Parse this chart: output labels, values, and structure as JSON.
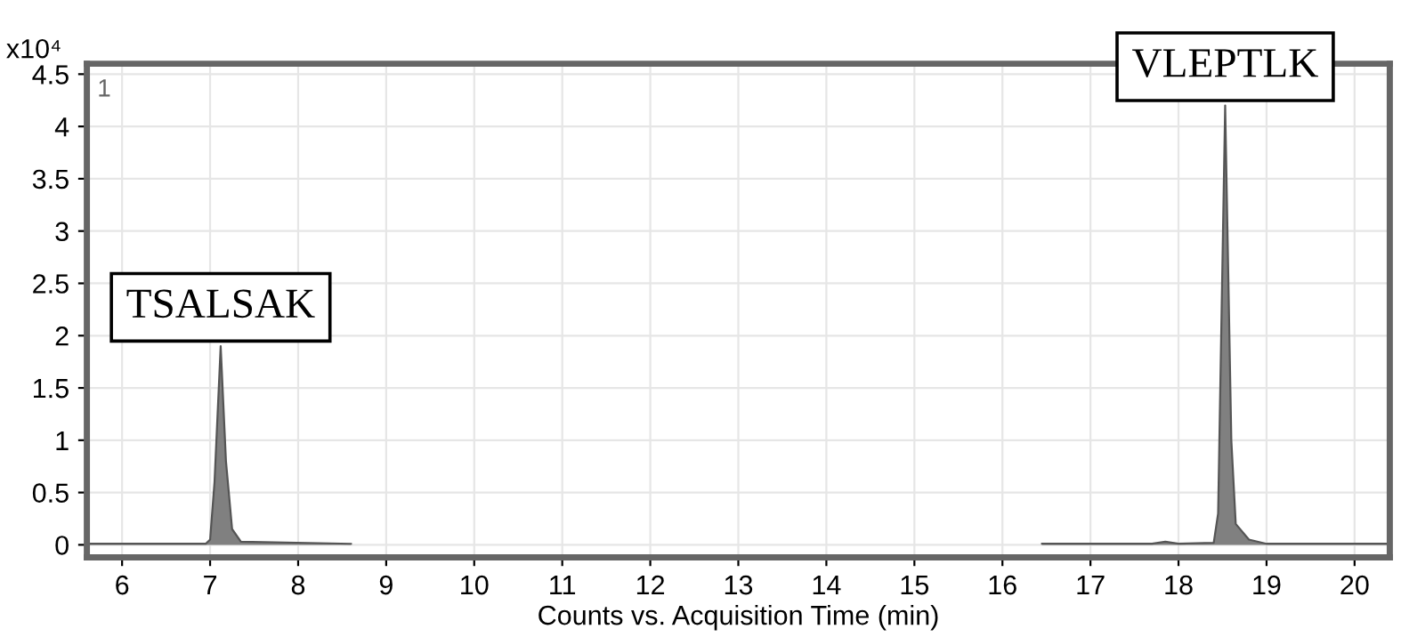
{
  "chart_data": {
    "type": "area",
    "xlabel": "Counts vs. Acquisition Time (min)",
    "ylabel": "x10⁴",
    "x": [
      5.6,
      6.95,
      7.0,
      7.05,
      7.12,
      7.18,
      7.25,
      7.35,
      8.6,
      12,
      16.45,
      17.7,
      17.85,
      18.0,
      18.4,
      18.45,
      18.53,
      18.6,
      18.65,
      18.8,
      19.0,
      20.4
    ],
    "series": [
      {
        "color": "#808080",
        "values": [
          0.01,
          0.01,
          0.05,
          0.6,
          1.9,
          0.8,
          0.15,
          0.03,
          0.01,
          null,
          0.01,
          0.01,
          0.03,
          0.01,
          0.02,
          0.3,
          4.2,
          1.0,
          0.2,
          0.05,
          0.01,
          0.01
        ]
      }
    ],
    "xlim": [
      5.6,
      20.4
    ],
    "ylim": [
      -0.12,
      4.6
    ],
    "xticks": [
      6,
      7,
      8,
      9,
      10,
      11,
      12,
      13,
      14,
      15,
      16,
      17,
      18,
      19,
      20
    ],
    "yticks": [
      0,
      0.5,
      1,
      1.5,
      2,
      2.5,
      3,
      3.5,
      4,
      4.5
    ],
    "grid": true,
    "annotations": [
      {
        "text": "TSALSAK",
        "x": 7.12,
        "y": 1.9
      },
      {
        "text": "VLEPTLK",
        "x": 18.53,
        "y": 4.2
      },
      "1"
    ]
  }
}
